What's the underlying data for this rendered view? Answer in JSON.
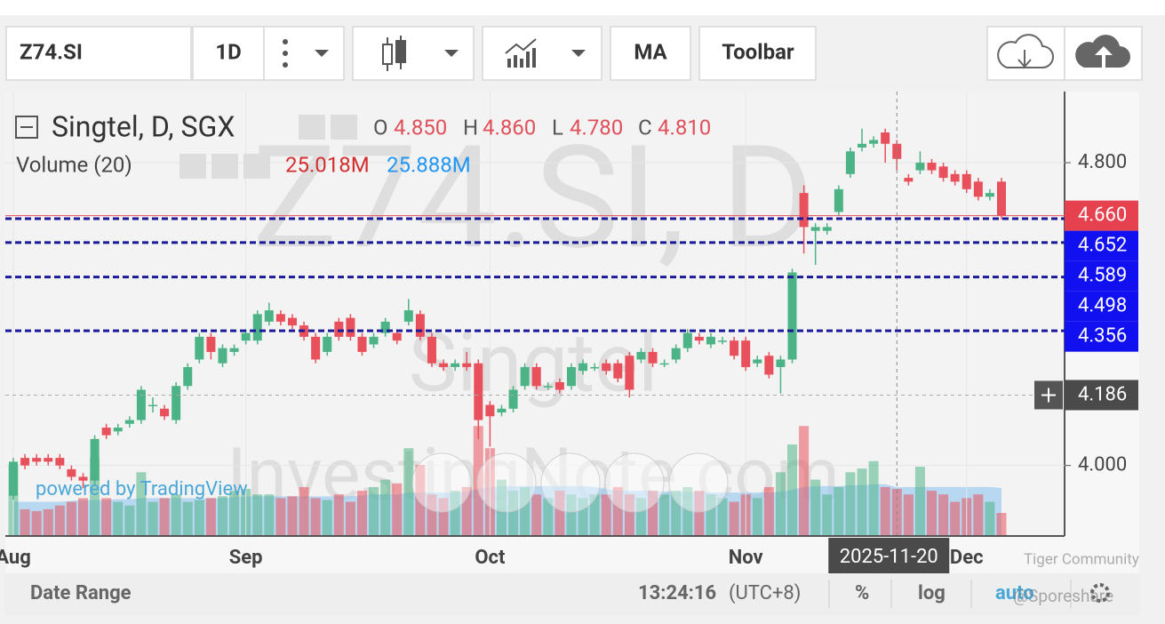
{
  "toolbar": {
    "symbol": "Z74.SI",
    "interval": "1D",
    "indicators": "MA",
    "toolbar": "Toolbar"
  },
  "header": {
    "title": "Singtel, D, SGX",
    "open_label": "O",
    "open": "4.850",
    "high_label": "H",
    "high": "4.860",
    "low_label": "L",
    "low": "4.780",
    "close_label": "C",
    "close": "4.810",
    "volume_title": "Volume (20)",
    "volume": "25.018M",
    "volume_ma": "25.888M"
  },
  "watermarks": {
    "symbol": "Z74.SI, D",
    "name": "Singtel",
    "site": "InvestingNote.com",
    "powered": "powered by TradingView",
    "community": "Tiger Community",
    "handle": "@Sporeshare"
  },
  "footer": {
    "date_range": "Date Range",
    "time": "13:24:16",
    "timezone": "(UTC+8)",
    "percent": "%",
    "log": "log",
    "auto": "auto"
  },
  "chart_data": {
    "type": "candlestick",
    "categories": [
      "Aug",
      null,
      null,
      null,
      null,
      null,
      null,
      null,
      null,
      null,
      null,
      null,
      null,
      null,
      null,
      null,
      null,
      null,
      null,
      null,
      "Sep",
      null,
      null,
      null,
      null,
      null,
      null,
      null,
      null,
      null,
      null,
      null,
      null,
      null,
      null,
      null,
      null,
      null,
      null,
      null,
      null,
      "Oct",
      null,
      null,
      null,
      null,
      null,
      null,
      null,
      null,
      null,
      null,
      null,
      null,
      null,
      null,
      null,
      null,
      null,
      null,
      null,
      null,
      null,
      "Nov",
      null,
      null,
      null,
      null,
      null,
      null,
      null,
      null,
      null,
      null,
      null,
      null,
      "2025-11-20",
      null,
      null,
      null,
      null,
      null,
      "Dec",
      null,
      null,
      null
    ],
    "open": [
      3.92,
      4.02,
      4.02,
      4.02,
      4.02,
      3.99,
      3.97,
      3.96,
      4.1,
      4.09,
      4.11,
      4.12,
      4.16,
      4.15,
      4.12,
      4.21,
      4.28,
      4.34,
      4.27,
      4.3,
      4.33,
      4.33,
      4.38,
      4.4,
      4.39,
      4.37,
      4.34,
      4.3,
      4.38,
      4.39,
      4.34,
      4.32,
      4.35,
      4.35,
      4.38,
      4.4,
      4.34,
      4.27,
      4.26,
      4.27,
      4.27,
      4.16,
      4.14,
      4.15,
      4.21,
      4.26,
      4.21,
      4.22,
      4.21,
      4.25,
      4.26,
      4.27,
      4.27,
      4.29,
      4.28,
      4.3,
      4.27,
      4.28,
      4.31,
      4.34,
      4.32,
      4.33,
      4.33,
      4.33,
      4.27,
      4.29,
      4.26,
      4.28,
      4.72,
      4.62,
      4.62,
      4.67,
      4.77,
      4.84,
      4.85,
      4.88,
      4.85,
      4.76,
      4.78,
      4.8,
      4.79,
      4.77,
      4.77,
      4.75,
      4.71,
      4.75
    ],
    "high": [
      4.02,
      4.03,
      4.03,
      4.03,
      4.03,
      4.0,
      3.98,
      4.08,
      4.11,
      4.11,
      4.13,
      4.21,
      4.18,
      4.16,
      4.22,
      4.27,
      4.35,
      4.35,
      4.32,
      4.32,
      4.36,
      4.41,
      4.43,
      4.41,
      4.4,
      4.38,
      4.35,
      4.35,
      4.39,
      4.4,
      4.35,
      4.35,
      4.39,
      4.36,
      4.44,
      4.41,
      4.35,
      4.28,
      4.28,
      4.3,
      4.28,
      4.17,
      4.16,
      4.21,
      4.27,
      4.27,
      4.22,
      4.23,
      4.27,
      4.28,
      4.27,
      4.28,
      4.28,
      4.3,
      4.31,
      4.31,
      4.28,
      4.32,
      4.36,
      4.35,
      4.35,
      4.34,
      4.34,
      4.34,
      4.29,
      4.3,
      4.29,
      4.52,
      4.74,
      4.64,
      4.64,
      4.74,
      4.84,
      4.89,
      4.87,
      4.89,
      4.86,
      4.77,
      4.83,
      4.81,
      4.8,
      4.78,
      4.78,
      4.76,
      4.73,
      4.76
    ],
    "low": [
      3.91,
      3.99,
      4.0,
      4.0,
      3.99,
      3.96,
      3.94,
      3.95,
      4.07,
      4.08,
      4.1,
      4.11,
      4.14,
      4.12,
      4.11,
      4.2,
      4.27,
      4.28,
      4.26,
      4.29,
      4.32,
      4.32,
      4.37,
      4.37,
      4.36,
      4.33,
      4.27,
      4.29,
      4.33,
      4.33,
      4.29,
      4.31,
      4.34,
      4.32,
      4.37,
      4.33,
      4.26,
      4.25,
      4.25,
      4.25,
      4.07,
      4.05,
      4.13,
      4.14,
      4.2,
      4.2,
      4.2,
      4.19,
      4.2,
      4.24,
      4.25,
      4.24,
      4.22,
      4.18,
      4.27,
      4.26,
      4.26,
      4.27,
      4.3,
      4.32,
      4.31,
      4.32,
      4.28,
      4.25,
      4.26,
      4.23,
      4.19,
      4.27,
      4.56,
      4.53,
      4.61,
      4.66,
      4.76,
      4.83,
      4.84,
      4.8,
      4.78,
      4.74,
      4.77,
      4.77,
      4.75,
      4.74,
      4.72,
      4.7,
      4.7,
      4.65
    ],
    "close": [
      4.01,
      4.0,
      4.01,
      4.01,
      4.0,
      3.97,
      3.96,
      4.07,
      4.08,
      4.1,
      4.12,
      4.2,
      4.16,
      4.13,
      4.21,
      4.26,
      4.34,
      4.3,
      4.31,
      4.31,
      4.35,
      4.4,
      4.41,
      4.38,
      4.37,
      4.34,
      4.28,
      4.34,
      4.34,
      4.34,
      4.3,
      4.34,
      4.38,
      4.33,
      4.41,
      4.34,
      4.27,
      4.26,
      4.27,
      4.26,
      4.12,
      4.13,
      4.15,
      4.2,
      4.26,
      4.21,
      4.21,
      4.2,
      4.26,
      4.27,
      4.26,
      4.25,
      4.23,
      4.2,
      4.3,
      4.27,
      4.27,
      4.31,
      4.35,
      4.33,
      4.34,
      4.33,
      4.29,
      4.26,
      4.28,
      4.24,
      4.28,
      4.51,
      4.63,
      4.63,
      4.63,
      4.73,
      4.83,
      4.85,
      4.86,
      4.85,
      4.81,
      4.75,
      4.8,
      4.78,
      4.76,
      4.75,
      4.73,
      4.71,
      4.72,
      4.66
    ],
    "volume": [
      38,
      14,
      13,
      14,
      16,
      18,
      20,
      42,
      20,
      18,
      16,
      34,
      18,
      20,
      22,
      18,
      19,
      20,
      21,
      24,
      25,
      22,
      22,
      20,
      21,
      26,
      20,
      19,
      22,
      18,
      24,
      26,
      30,
      28,
      47,
      38,
      22,
      20,
      24,
      26,
      59,
      47,
      30,
      24,
      26,
      22,
      20,
      24,
      22,
      20,
      22,
      22,
      26,
      22,
      20,
      24,
      22,
      24,
      26,
      24,
      22,
      20,
      18,
      22,
      20,
      26,
      34,
      49,
      59,
      30,
      22,
      26,
      34,
      36,
      40,
      26,
      25.018,
      22,
      37,
      24,
      22,
      18,
      20,
      22,
      18,
      12
    ],
    "volume_ma": [
      18,
      18,
      18,
      18,
      18,
      18.5,
      19,
      19,
      19,
      19.5,
      19.5,
      20,
      20,
      20,
      20,
      20,
      20,
      20,
      20,
      20.5,
      21,
      21,
      21,
      21,
      21,
      21,
      21,
      21,
      21,
      21,
      21.5,
      22,
      22,
      22,
      23,
      23,
      23,
      23,
      23,
      23.5,
      25,
      26,
      26.5,
      26.5,
      26.5,
      26.5,
      26.5,
      26.5,
      26.5,
      26.5,
      26,
      25,
      24,
      24,
      24,
      24,
      23.5,
      23.5,
      23.5,
      23.5,
      23,
      23,
      23,
      23,
      23,
      23,
      23.5,
      24.5,
      26,
      26.5,
      26.5,
      26.5,
      27,
      27,
      27.5,
      27.5,
      25.888,
      26,
      26,
      26,
      26,
      26,
      26,
      26,
      26,
      25.5
    ],
    "ylim": [
      3.816,
      4.988
    ],
    "yticks": [
      {
        "value": 4.0,
        "label": "4.000"
      },
      {
        "value": 4.8,
        "label": "4.800"
      }
    ],
    "levels": [
      4.652,
      4.589,
      4.498,
      4.356
    ],
    "last_price": {
      "value": 4.66,
      "label": "4.660"
    },
    "crosshair_price": 4.186,
    "up_color": "#4cb386",
    "down_color": "#e8505b",
    "level_color": "#1b1b9a",
    "volume_ma_color": "#8fc7f0",
    "grid": true
  }
}
